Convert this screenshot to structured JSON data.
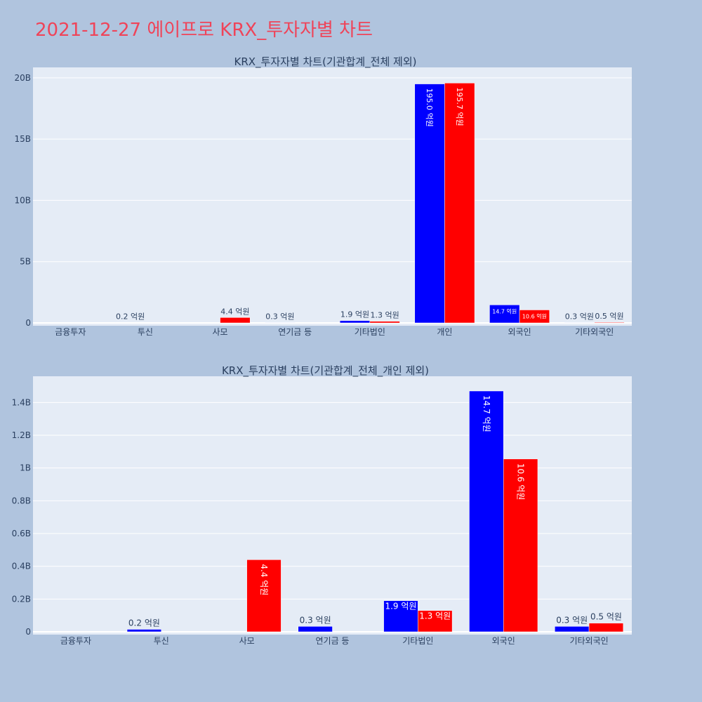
{
  "page": {
    "title": "2021-12-27 에이프로 KRX_투자자별 차트"
  },
  "colors": {
    "buy": "#0000ff",
    "sell": "#ff0000",
    "plot_bg": "#e5ecf6",
    "page_bg": "#b0c4de",
    "title": "#ef4459"
  },
  "chart_data": [
    {
      "type": "bar",
      "title": "KRX_투자자별 차트(기관합계_전체 제외)",
      "categories": [
        "금융투자",
        "투신",
        "사모",
        "연기금 등",
        "기타법인",
        "개인",
        "외국인",
        "기타외국인"
      ],
      "ylim": [
        0,
        20.85
      ],
      "yticks": [
        0,
        5,
        10,
        15,
        20
      ],
      "ytick_labels": [
        "0",
        "5B",
        "10B",
        "15B",
        "20B"
      ],
      "grid": true,
      "series": [
        {
          "color": "#0000ff",
          "values": [
            0,
            0.02,
            0,
            0.03,
            0.19,
            19.5,
            1.47,
            0.03
          ],
          "labels": [
            "",
            "0.2 억원",
            "",
            "0.3 억원",
            "1.9 억원",
            "195.0 억원",
            "14.7 억원",
            "0.3 억원"
          ]
        },
        {
          "color": "#ff0000",
          "values": [
            0,
            0,
            0.44,
            0,
            0.13,
            19.57,
            1.06,
            0.05
          ],
          "labels": [
            "",
            "",
            "4.4 억원",
            "",
            "1.3 억원",
            "195.7 억원",
            "10.6 억원",
            "0.5 억원"
          ]
        }
      ]
    },
    {
      "type": "bar",
      "title": "KRX_투자자별 차트(기관합계_전체_개인 제외)",
      "categories": [
        "금융투자",
        "투신",
        "사모",
        "연기금 등",
        "기타법인",
        "외국인",
        "기타외국인"
      ],
      "ylim": [
        0,
        1.56
      ],
      "yticks": [
        0,
        0.2,
        0.4,
        0.6,
        0.8,
        1.0,
        1.2,
        1.4
      ],
      "ytick_labels": [
        "0",
        "0.2B",
        "0.4B",
        "0.6B",
        "0.8B",
        "1B",
        "1.2B",
        "1.4B"
      ],
      "grid": true,
      "series": [
        {
          "color": "#0000ff",
          "values": [
            0,
            0.015,
            0,
            0.033,
            0.19,
            1.47,
            0.033
          ],
          "labels": [
            "",
            "0.2 억원",
            "",
            "0.3 억원",
            "1.9 억원",
            "14.7 억원",
            "0.3 억원"
          ]
        },
        {
          "color": "#ff0000",
          "values": [
            0,
            0,
            0.44,
            0,
            0.13,
            1.055,
            0.053
          ],
          "labels": [
            "",
            "",
            "4.4 억원",
            "",
            "1.3 억원",
            "10.6 억원",
            "0.5 억원"
          ]
        }
      ]
    }
  ]
}
